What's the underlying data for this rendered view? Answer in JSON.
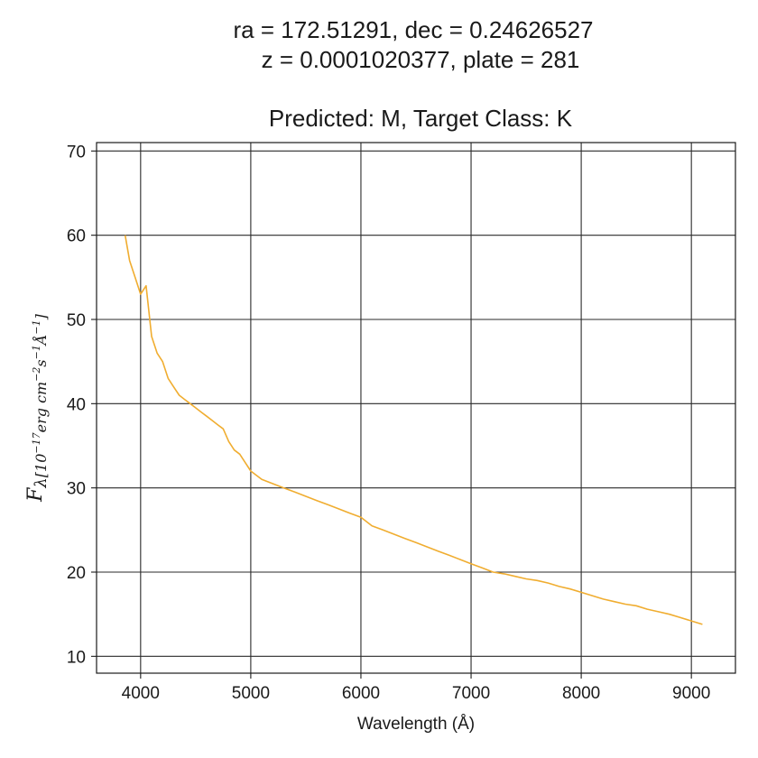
{
  "chart_data": {
    "type": "line",
    "title_lines": [
      "ra = 172.51291, dec = 0.24626527",
      "z = 0.0001020377, plate = 281",
      "",
      "Predicted: M, Target Class: K"
    ],
    "xlabel": "Wavelength (Å)",
    "ylabel": {
      "main": "F",
      "sub_symbol": "λ",
      "open": "[",
      "base": "10",
      "exp": "−17",
      "unit1": "erg cm",
      "exp2": "−2",
      "unit2": "s",
      "exp3": "−1",
      "unit3": "Å",
      "exp4": "−1",
      "close": "]"
    },
    "xlim": [
      3600,
      9400
    ],
    "ylim": [
      8,
      71
    ],
    "xticks": [
      4000,
      5000,
      6000,
      7000,
      8000,
      9000
    ],
    "yticks": [
      10,
      20,
      30,
      40,
      50,
      60,
      70
    ],
    "grid": true,
    "line_color": "#f0ad30",
    "series": [
      {
        "x": [
          3860,
          3900,
          3950,
          4000,
          4050,
          4100,
          4150,
          4200,
          4250,
          4300,
          4350,
          4400,
          4450,
          4500,
          4550,
          4600,
          4650,
          4700,
          4750,
          4800,
          4850,
          4900,
          4950,
          5000,
          5100,
          5200,
          5300,
          5400,
          5500,
          5600,
          5700,
          5800,
          5900,
          6000,
          6100,
          6200,
          6300,
          6400,
          6500,
          6600,
          6700,
          6800,
          6900,
          7000,
          7100,
          7200,
          7300,
          7400,
          7500,
          7600,
          7700,
          7800,
          7900,
          8000,
          8100,
          8200,
          8300,
          8400,
          8500,
          8600,
          8700,
          8800,
          8900,
          9000,
          9100
        ],
        "values": [
          60,
          57,
          55,
          53,
          54,
          48,
          46,
          45,
          43,
          42,
          41,
          40.5,
          40,
          39.5,
          39,
          38.5,
          38,
          37.5,
          37,
          35.5,
          34.5,
          34,
          33,
          32,
          31,
          30.5,
          30,
          29.5,
          29,
          28.5,
          28,
          27.5,
          27,
          26.5,
          25.5,
          25,
          24.5,
          24,
          23.5,
          23,
          22.5,
          22,
          21.5,
          21,
          20.5,
          20,
          19.8,
          19.5,
          19.2,
          19,
          18.7,
          18.3,
          18,
          17.6,
          17.2,
          16.8,
          16.5,
          16.2,
          16,
          15.6,
          15.3,
          15,
          14.6,
          14.2,
          13.8
        ]
      }
    ]
  }
}
